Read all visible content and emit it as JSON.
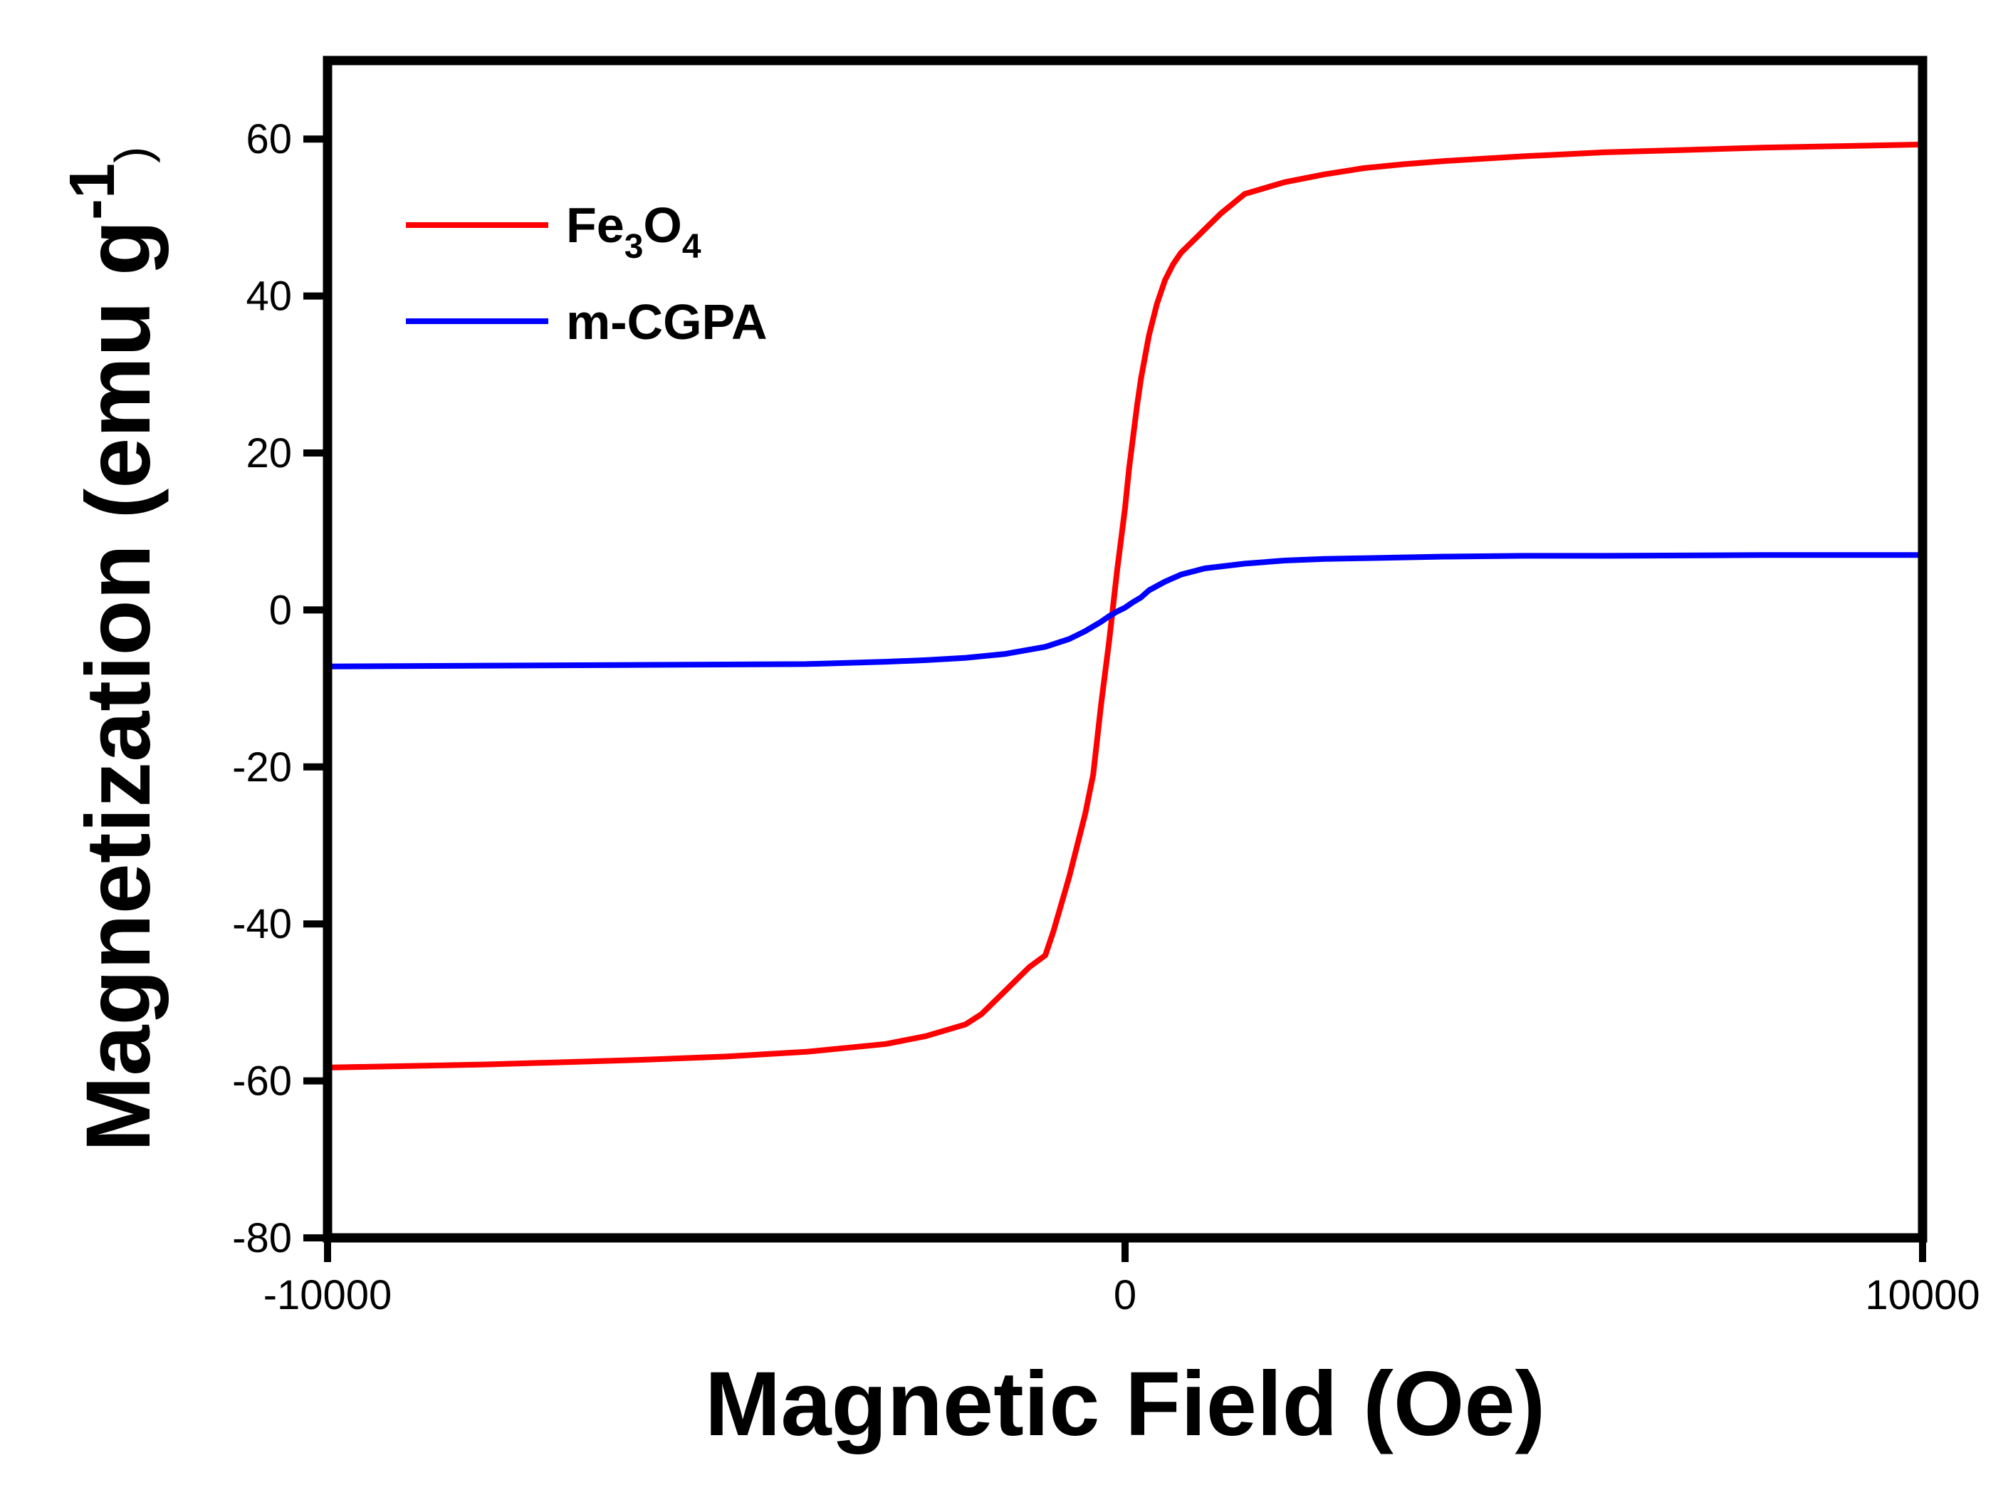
{
  "chart_data": {
    "type": "line",
    "title": "",
    "xlabel": "Magnetic Field (Oe)",
    "ylabel": {
      "main": "Magnetization (emu g",
      "superscript": "-1",
      "close": ")"
    },
    "xlim": [
      -10000,
      10000
    ],
    "ylim": [
      -80,
      70
    ],
    "x_ticks": [
      -10000,
      0,
      10000
    ],
    "y_ticks": [
      -80,
      -60,
      -40,
      -20,
      0,
      20,
      40,
      60
    ],
    "x_tick_labels": [
      "-10000",
      "0",
      "10000"
    ],
    "y_tick_labels": [
      "-80",
      "-60",
      "-40",
      "-20",
      "0",
      "20",
      "40",
      "60"
    ],
    "grid": false,
    "legend_position": "top-left",
    "series": [
      {
        "name": "Fe3O4",
        "legend": {
          "base1": "Fe",
          "sub1": "3",
          "base2": "O",
          "sub2": "4"
        },
        "color": "#ff0000",
        "x": [
          -10000,
          -9000,
          -8000,
          -7000,
          -6000,
          -5000,
          -4000,
          -3000,
          -2500,
          -2000,
          -1800,
          -1500,
          -1200,
          -1000,
          -900,
          -800,
          -700,
          -600,
          -500,
          -400,
          -300,
          -200,
          -150,
          -100,
          -50,
          0,
          50,
          100,
          150,
          200,
          300,
          400,
          500,
          600,
          700,
          800,
          900,
          1000,
          1200,
          1500,
          2000,
          2500,
          3000,
          3500,
          4000,
          5000,
          6000,
          7000,
          8000,
          9000,
          10000
        ],
        "values": [
          -58.3,
          -58.1,
          -57.9,
          -57.6,
          -57.3,
          -56.9,
          -56.3,
          -55.3,
          -54.3,
          -52.8,
          -51.5,
          -48.5,
          -45.5,
          -44.0,
          -41.0,
          -37.5,
          -34.0,
          -30.0,
          -26.0,
          -21.0,
          -12.0,
          -4.0,
          0.5,
          5.0,
          9.0,
          13.0,
          18.0,
          22.0,
          26.0,
          29.5,
          35.0,
          39.0,
          42.0,
          44.0,
          45.5,
          46.5,
          47.5,
          48.5,
          50.5,
          53.0,
          54.5,
          55.5,
          56.3,
          56.8,
          57.2,
          57.8,
          58.3,
          58.6,
          58.9,
          59.1,
          59.3
        ]
      },
      {
        "name": "m-CGPA",
        "color": "#0000ff",
        "x": [
          -10000,
          -8000,
          -6000,
          -4000,
          -3000,
          -2500,
          -2000,
          -1500,
          -1000,
          -700,
          -500,
          -300,
          -200,
          -100,
          0,
          100,
          200,
          300,
          500,
          700,
          1000,
          1500,
          2000,
          2500,
          3000,
          4000,
          5000,
          6000,
          8000,
          10000
        ],
        "values": [
          -7.2,
          -7.1,
          -7.0,
          -6.9,
          -6.6,
          -6.4,
          -6.1,
          -5.6,
          -4.7,
          -3.7,
          -2.7,
          -1.5,
          -0.8,
          -0.2,
          0.3,
          1.0,
          1.6,
          2.5,
          3.6,
          4.5,
          5.3,
          5.9,
          6.3,
          6.5,
          6.6,
          6.8,
          6.9,
          6.9,
          7.0,
          7.0
        ]
      }
    ]
  }
}
